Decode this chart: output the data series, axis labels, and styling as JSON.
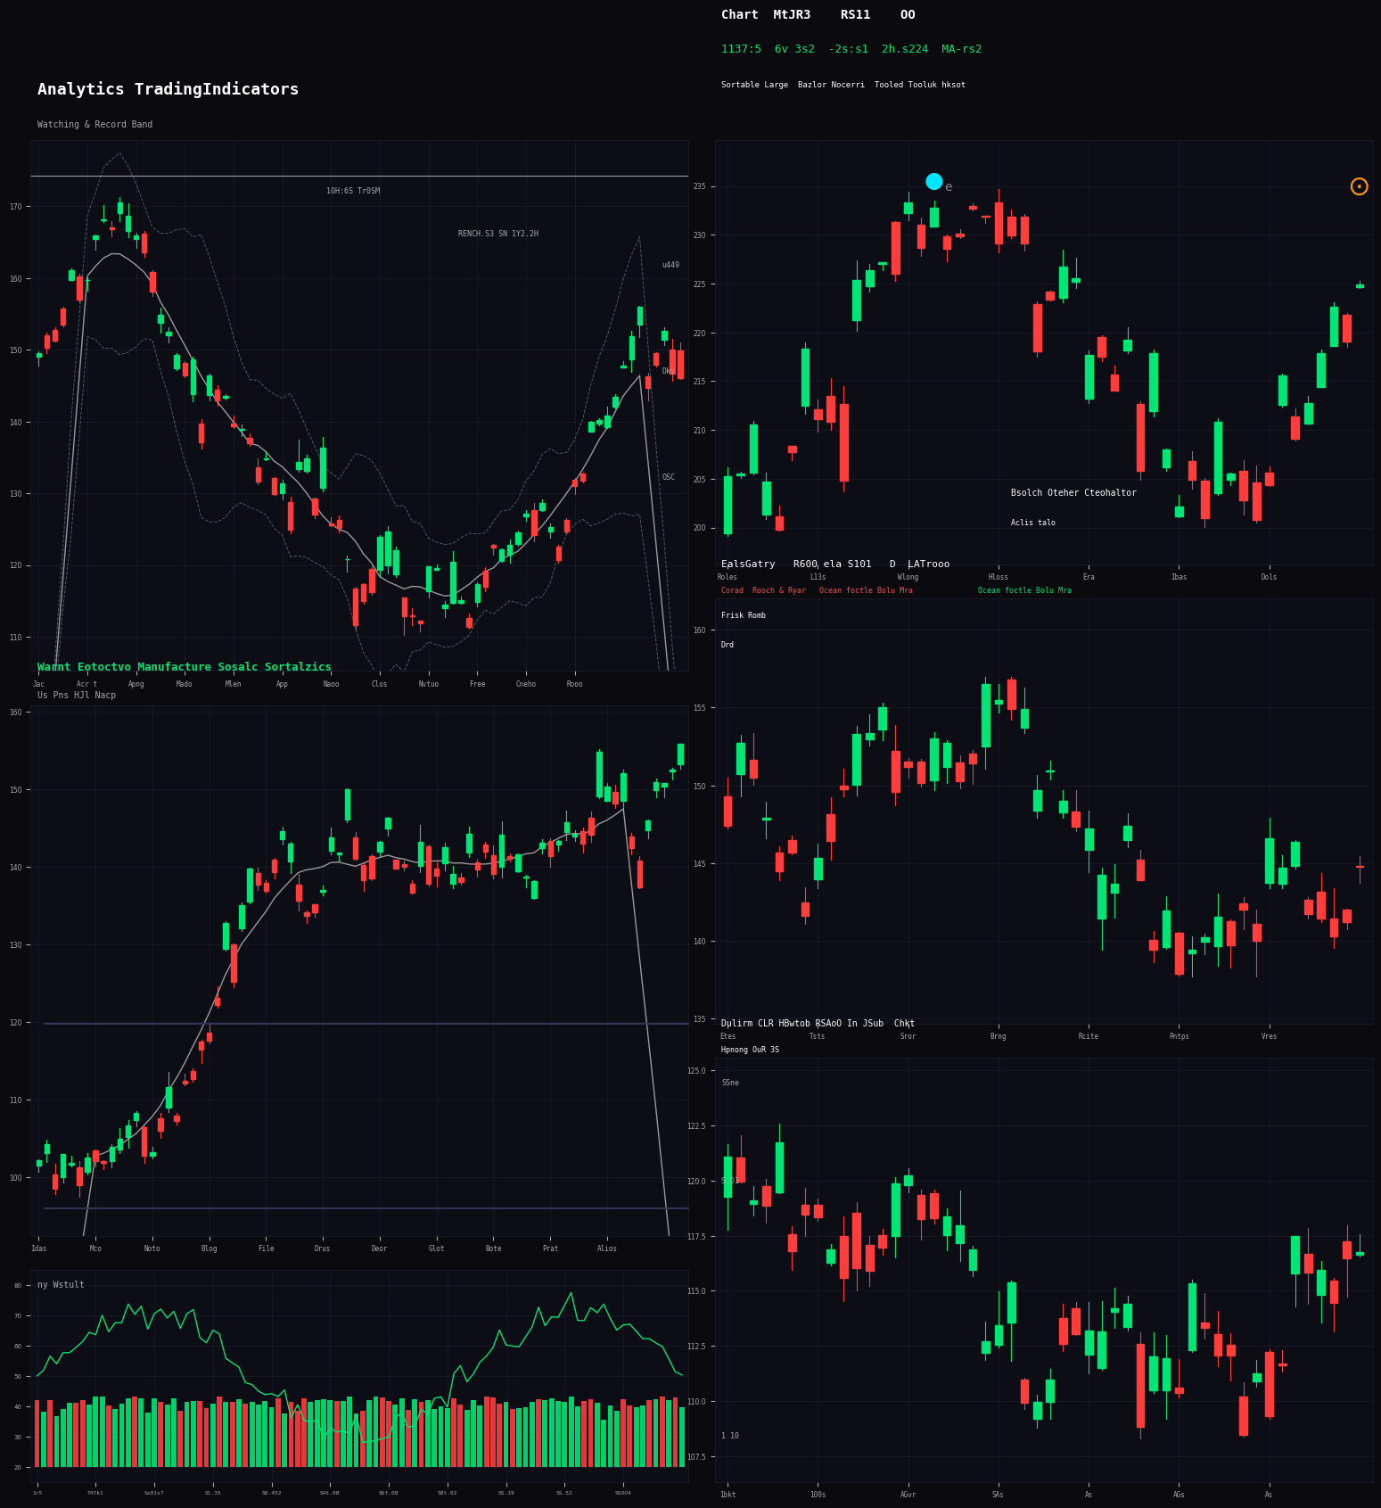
{
  "background_color": "#0a0a0f",
  "panel_bg": "#0d0d15",
  "grid_color": "#1a2030",
  "title_left": "Analytics TradingIndicators",
  "title_right": "Chart  MtJR3    RS11    OO",
  "subtitle_left": "Watching & Record Band",
  "subtitle_right": "Sortable Large  Bazlor Nocerri  Tooled Tooluk hksot",
  "green_candle": "#00e676",
  "red_candle": "#ff3d3d",
  "green_candle2": "#26a69a",
  "red_candle2": "#ef5350",
  "ma_line": "#aaaaaa",
  "green_line": "#00e676",
  "cyan_text": "#00e5ff",
  "orange_text": "#ff9800",
  "yellow_text": "#ffeb3b",
  "white_text": "#ffffff",
  "gray_text": "#aaaaaa",
  "section_title_left2": "Warnt Eotoctvo Manufacture Sosalc Sortalzics",
  "section_title_right2": "EalsGatry   R600 ela S101   D  LATrooo",
  "section_sub_left2": "Us Pns HJl Nacp",
  "section_sub_right2": "Corad  Rooch & Ryar   Ocean foctle Bolu Mra",
  "section_title_bottom_right": "Dulirm CLR HBwtob RSAoO In JSub  Chkt",
  "section_sub_bottom_right": "Hpnong OuR 3S",
  "green_numbers": "1137:5  6v 3s2  -2s:s1  2h.s224  MA-rs2",
  "x_labels_top": [
    "Jac",
    "Acr t",
    "Apng",
    "Mado",
    "Mlen",
    "App",
    "Naoo",
    "Clos",
    "Nvtuo",
    "Free",
    "Cneho",
    "Rooo"
  ],
  "x_labels_bottom_left": [
    "Idas",
    "Mco",
    "Noto",
    "Blog",
    "File",
    "Drus",
    "Deor",
    "Glot",
    "Bote",
    "Prat",
    "Alios"
  ],
  "x_labels_right_top": [
    "Roles",
    "L13s",
    "Wlong",
    "Hloss",
    "Era",
    "Ibas",
    "Dols"
  ],
  "x_labels_right_bottom": [
    "Etes",
    "Tsts",
    "Sror",
    "Brng",
    "Rcite",
    "Pntps",
    "Vres"
  ],
  "x_labels_bottom_right": [
    "1bkt",
    "100s",
    "AGvr",
    "SAs",
    "As",
    "AGs",
    "As"
  ]
}
